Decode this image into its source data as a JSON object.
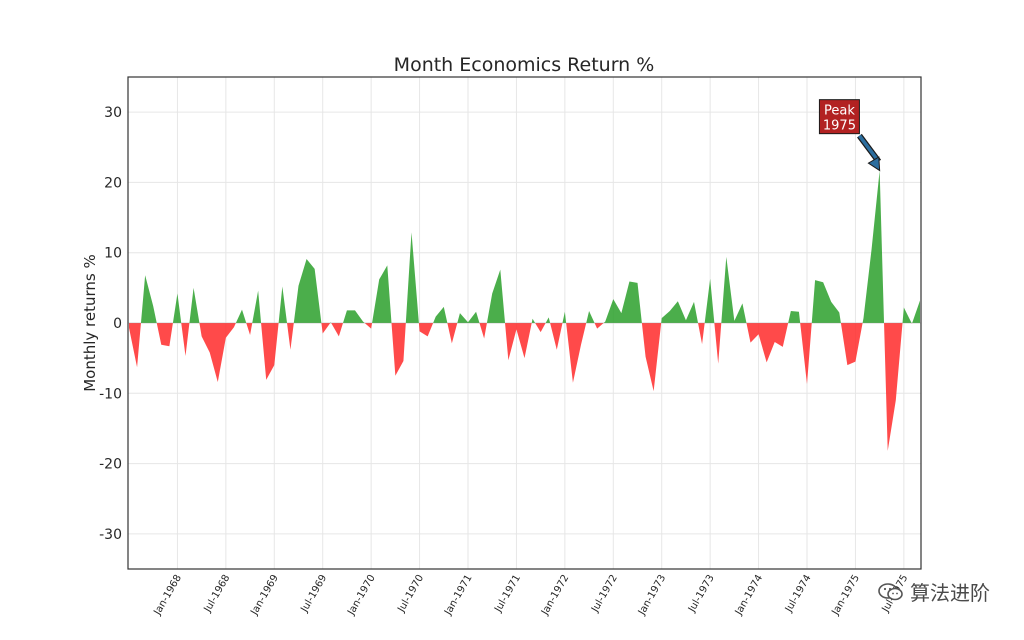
{
  "chart_data": {
    "type": "area",
    "title": "Month Economics Return %",
    "xlabel": "",
    "ylabel": "Monthly returns %",
    "ylim": [
      -35,
      35
    ],
    "yticks": [
      -30,
      -20,
      -10,
      0,
      10,
      20,
      30
    ],
    "grid": true,
    "start_month": "1967-07",
    "xtick_labels": [
      "Jan-1968",
      "Jul-1968",
      "Jan-1969",
      "Jul-1969",
      "Jan-1970",
      "Jul-1970",
      "Jan-1971",
      "Jul-1971",
      "Jan-1972",
      "Jul-1972",
      "Jan-1973",
      "Jul-1973",
      "Jan-1974",
      "Jul-1974",
      "Jan-1975",
      "Jul-1975"
    ],
    "xtick_months": [
      "1968-01",
      "1968-07",
      "1969-01",
      "1969-07",
      "1970-01",
      "1970-07",
      "1971-01",
      "1971-07",
      "1972-01",
      "1972-07",
      "1973-01",
      "1973-07",
      "1974-01",
      "1974-07",
      "1975-01",
      "1975-07"
    ],
    "series": [
      {
        "values": [
          -0.7,
          -6.3,
          6.8,
          2.4,
          -3.1,
          -3.3,
          4.2,
          -4.7,
          5.0,
          -1.9,
          -4.2,
          -8.4,
          -2.1,
          -0.6,
          1.9,
          -1.7,
          4.6,
          -8.1,
          -6.0,
          5.2,
          -3.8,
          5.3,
          9.1,
          7.7,
          -1.5,
          0.1,
          -1.9,
          1.8,
          1.8,
          0.2,
          -0.8,
          6.2,
          8.2,
          -7.5,
          -5.4,
          12.9,
          -1.2,
          -1.9,
          0.9,
          2.3,
          -2.9,
          1.4,
          0.1,
          1.6,
          -2.2,
          4.2,
          7.6,
          -5.3,
          -0.9,
          -5.0,
          0.6,
          -1.3,
          0.8,
          -3.8,
          1.6,
          -8.5,
          -3.1,
          1.7,
          -0.8,
          0.2,
          3.4,
          1.4,
          5.9,
          5.7,
          -4.8,
          -9.7,
          0.7,
          1.7,
          3.1,
          0.4,
          3.0,
          -3.0,
          6.3,
          -5.8,
          9.4,
          0.3,
          2.8,
          -2.8,
          -1.6,
          -5.6,
          -2.7,
          -3.4,
          1.7,
          1.6,
          -8.7,
          6.1,
          5.8,
          3.0,
          1.5,
          -6.0,
          -5.5,
          0.7,
          10.5,
          21.7,
          -18.2,
          -11.0,
          2.2,
          -0.1,
          3.2
        ],
        "positive_color": "#2ca02c",
        "negative_color": "#ff2a2a"
      }
    ],
    "annotation": {
      "text_line1": "Peak",
      "text_line2": "1975",
      "target_month": "1975-04",
      "target_value": 21.7,
      "box_month": "1975-01",
      "box_value": 29.5,
      "box_color": "#b22222",
      "arrow_color": "#2b6d9e"
    }
  },
  "watermark": {
    "text": "算法进阶"
  }
}
